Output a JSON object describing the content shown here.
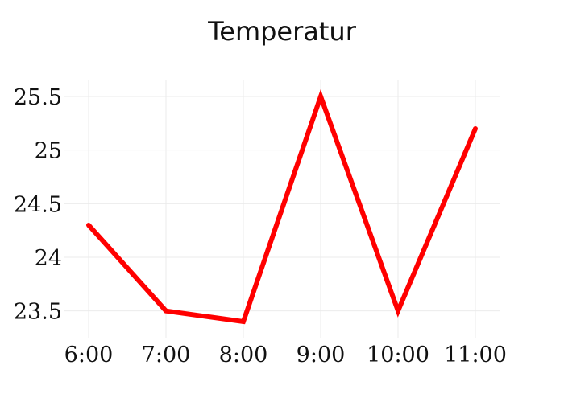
{
  "chart_data": {
    "type": "line",
    "title": "Temperatur",
    "xlabel": "",
    "ylabel": "",
    "categories": [
      "6:00",
      "7:00",
      "8:00",
      "9:00",
      "10:00",
      "11:00"
    ],
    "series": [
      {
        "values": [
          24.3,
          23.5,
          23.4,
          25.5,
          23.5,
          25.2
        ],
        "color": "#ff0000"
      }
    ],
    "ylim": [
      23.25,
      25.65
    ],
    "yticks": [
      23.5,
      24,
      24.5,
      25,
      25.5
    ],
    "ytick_labels": [
      "23.5",
      "24",
      "24.5",
      "25",
      "25.5"
    ],
    "grid": true,
    "legend": "none"
  }
}
